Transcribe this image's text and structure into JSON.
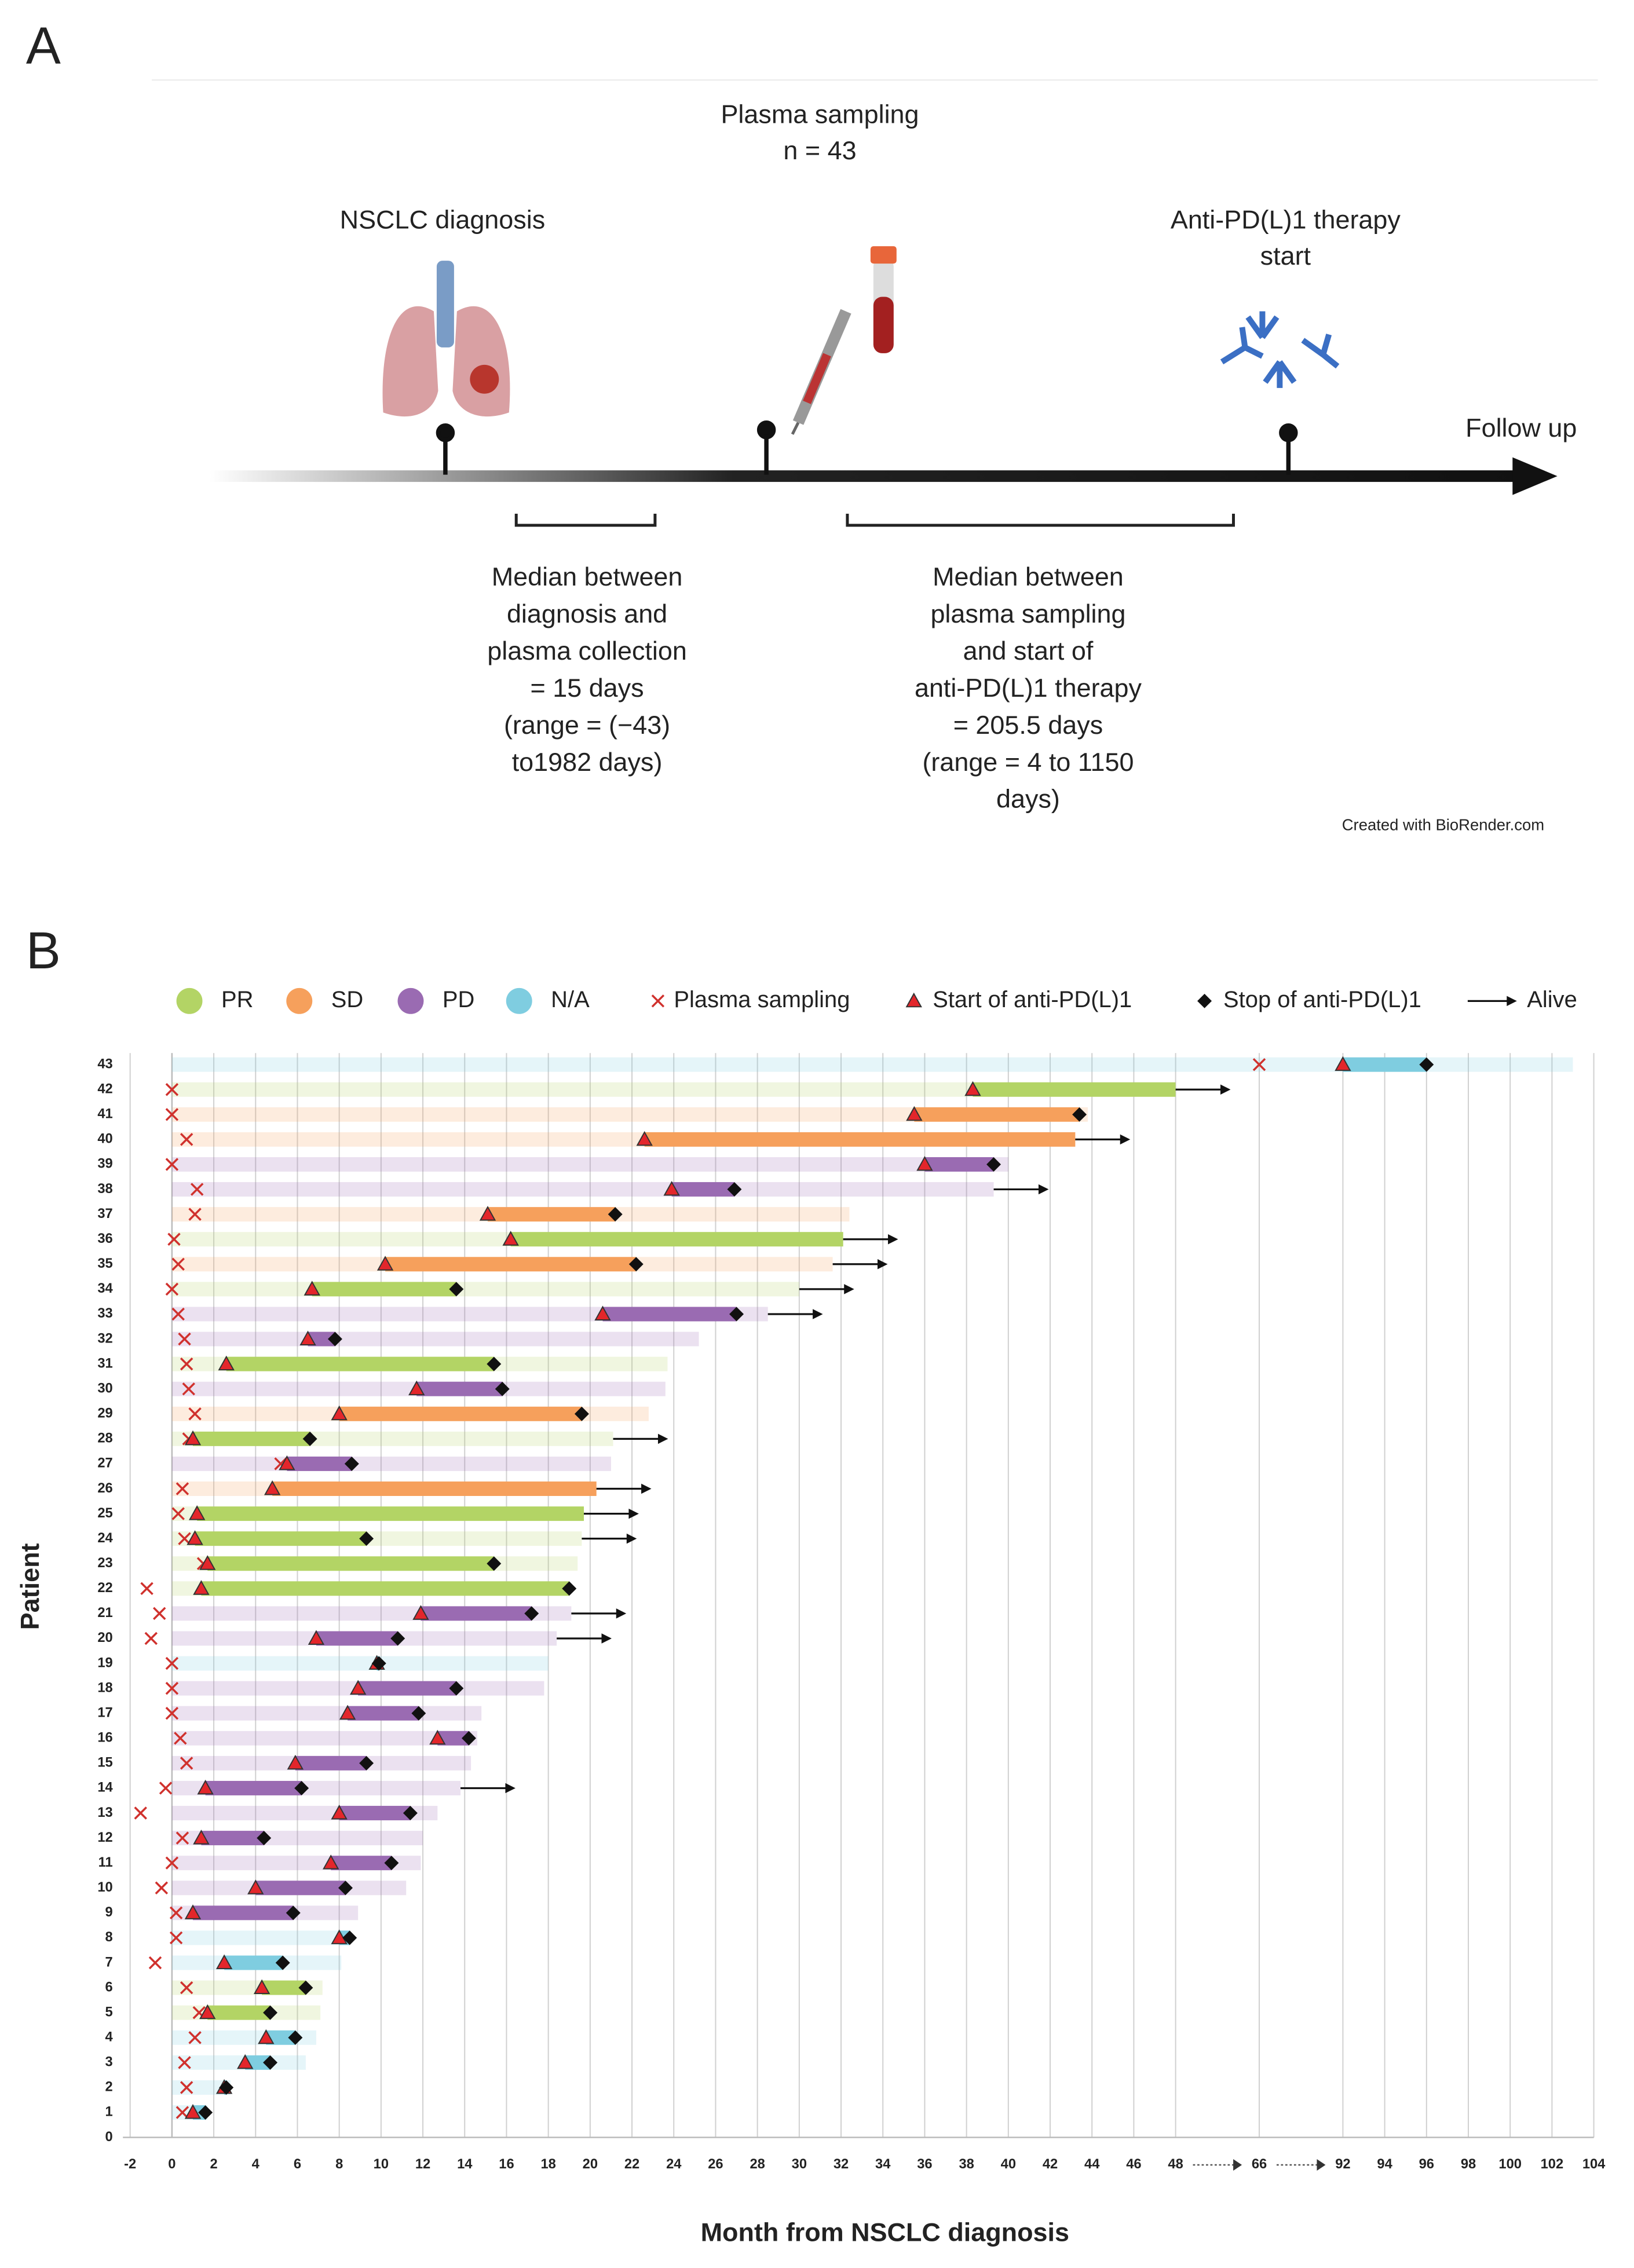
{
  "panel_a": {
    "label": "A",
    "plasma_sampling": "Plasma sampling",
    "n": "n = 43",
    "diagnosis": "NSCLC diagnosis",
    "therapy": [
      "Anti-PD(L)1 therapy",
      "start"
    ],
    "follow_up": "Follow up",
    "median_left": [
      "Median between",
      "diagnosis and",
      "plasma collection",
      "= 15 days",
      "(range = (−43)",
      "to1982 days)"
    ],
    "median_right": [
      "Median between",
      "plasma sampling",
      "and start of",
      "anti-PD(L)1 therapy",
      "= 205.5 days",
      "(range = 4 to 1150",
      "days)"
    ],
    "credit": "Created with BioRender.com"
  },
  "chart_data": {
    "type": "swimmer",
    "label": "B",
    "ylabel": "Patient",
    "xlabel": "Month from NSCLC diagnosis",
    "responses": [
      {
        "name": "PR",
        "color": "#b3d465"
      },
      {
        "name": "SD",
        "color": "#f6a05c"
      },
      {
        "name": "PD",
        "color": "#9a6bb2"
      },
      {
        "name": "N/A",
        "color": "#7fcde0"
      }
    ],
    "markers": {
      "plasma_sampling": "Plasma sampling",
      "start": "Start of anti-PD(L)1",
      "stop": "Stop of anti-PD(L)1",
      "alive": "Alive"
    },
    "xlim": [
      -2,
      104
    ],
    "xticks": [
      -2,
      0,
      2,
      4,
      6,
      8,
      10,
      12,
      14,
      16,
      18,
      20,
      22,
      24,
      26,
      28,
      30,
      32,
      34,
      36,
      38,
      40,
      42,
      44,
      46,
      48,
      66,
      92,
      94,
      96,
      98,
      100,
      102,
      104
    ],
    "ylim": [
      0,
      43
    ],
    "yticks": [
      0,
      1,
      2,
      3,
      4,
      5,
      6,
      7,
      8,
      9,
      10,
      11,
      12,
      13,
      14,
      15,
      16,
      17,
      18,
      19,
      20,
      21,
      22,
      23,
      24,
      25,
      26,
      27,
      28,
      29,
      30,
      31,
      32,
      33,
      34,
      35,
      36,
      37,
      38,
      39,
      40,
      41,
      42,
      43
    ],
    "grid": true,
    "patients": [
      {
        "patient": 1,
        "response": "N/A",
        "follow_up": 1.7,
        "plasma_sampling": 0.5,
        "start": 1,
        "stop": 1.6,
        "alive": false
      },
      {
        "patient": 2,
        "response": "N/A",
        "follow_up": 2.8,
        "plasma_sampling": 0.7,
        "start": 2.5,
        "stop": 2.6,
        "alive": false
      },
      {
        "patient": 3,
        "response": "N/A",
        "follow_up": 6.4,
        "plasma_sampling": 0.6,
        "start": 3.5,
        "stop": 4.7,
        "alive": false
      },
      {
        "patient": 4,
        "response": "N/A",
        "follow_up": 6.9,
        "plasma_sampling": 1.1,
        "start": 4.5,
        "stop": 5.9,
        "alive": false
      },
      {
        "patient": 5,
        "response": "PR",
        "follow_up": 7.1,
        "plasma_sampling": 1.3,
        "start": 1.7,
        "stop": 4.7,
        "alive": false
      },
      {
        "patient": 6,
        "response": "PR",
        "follow_up": 7.2,
        "plasma_sampling": 0.7,
        "start": 4.3,
        "stop": 6.4,
        "alive": false
      },
      {
        "patient": 7,
        "response": "N/A",
        "follow_up": 8.1,
        "plasma_sampling": -0.8,
        "start": 2.5,
        "stop": 5.3,
        "alive": false
      },
      {
        "patient": 8,
        "response": "N/A",
        "follow_up": 8.5,
        "plasma_sampling": 0.2,
        "start": 8,
        "stop": 8.5,
        "alive": false
      },
      {
        "patient": 9,
        "response": "PD",
        "follow_up": 8.9,
        "plasma_sampling": 0.2,
        "start": 1,
        "stop": 5.8,
        "alive": false
      },
      {
        "patient": 10,
        "response": "PD",
        "follow_up": 11.2,
        "plasma_sampling": -0.5,
        "start": 4,
        "stop": 8.3,
        "alive": false
      },
      {
        "patient": 11,
        "response": "PD",
        "follow_up": 11.9,
        "plasma_sampling": 0,
        "start": 7.6,
        "stop": 10.5,
        "alive": false
      },
      {
        "patient": 12,
        "response": "PD",
        "follow_up": 12,
        "plasma_sampling": 0.5,
        "start": 1.4,
        "stop": 4.4,
        "alive": false
      },
      {
        "patient": 13,
        "response": "PD",
        "follow_up": 12.7,
        "plasma_sampling": -1.5,
        "start": 8,
        "stop": 11.4,
        "alive": false
      },
      {
        "patient": 14,
        "response": "PD",
        "follow_up": 13.8,
        "plasma_sampling": -0.3,
        "start": 1.6,
        "stop": 6.2,
        "alive": true
      },
      {
        "patient": 15,
        "response": "PD",
        "follow_up": 14.3,
        "plasma_sampling": 0.7,
        "start": 5.9,
        "stop": 9.3,
        "alive": false
      },
      {
        "patient": 16,
        "response": "PD",
        "follow_up": 14.6,
        "plasma_sampling": 0.4,
        "start": 12.7,
        "stop": 14.2,
        "alive": false
      },
      {
        "patient": 17,
        "response": "PD",
        "follow_up": 14.8,
        "plasma_sampling": 0,
        "start": 8.4,
        "stop": 11.8,
        "alive": false
      },
      {
        "patient": 18,
        "response": "PD",
        "follow_up": 17.8,
        "plasma_sampling": 0,
        "start": 8.9,
        "stop": 13.6,
        "alive": false
      },
      {
        "patient": 19,
        "response": "N/A",
        "follow_up": 18,
        "plasma_sampling": 0,
        "start": 9.8,
        "stop": 9.9,
        "alive": false
      },
      {
        "patient": 20,
        "response": "PD",
        "follow_up": 18.4,
        "plasma_sampling": -1,
        "start": 6.9,
        "stop": 10.8,
        "alive": true
      },
      {
        "patient": 21,
        "response": "PD",
        "follow_up": 19.1,
        "plasma_sampling": -0.6,
        "start": 11.9,
        "stop": 17.2,
        "alive": true
      },
      {
        "patient": 22,
        "response": "PR",
        "follow_up": 19,
        "plasma_sampling": -1.2,
        "start": 1.4,
        "stop": 19,
        "alive": false
      },
      {
        "patient": 23,
        "response": "PR",
        "follow_up": 19.4,
        "plasma_sampling": 1.5,
        "start": 1.7,
        "stop": 15.4,
        "alive": false
      },
      {
        "patient": 24,
        "response": "PR",
        "follow_up": 19.6,
        "plasma_sampling": 0.6,
        "start": 1.1,
        "stop": 9.3,
        "alive": true
      },
      {
        "patient": 25,
        "response": "PR",
        "follow_up": 19.7,
        "plasma_sampling": 0.3,
        "start": 1.2,
        "stop": null,
        "alive": true
      },
      {
        "patient": 26,
        "response": "SD",
        "follow_up": 20.3,
        "plasma_sampling": 0.5,
        "start": 4.8,
        "stop": null,
        "alive": true
      },
      {
        "patient": 27,
        "response": "PD",
        "follow_up": 21,
        "plasma_sampling": 5.2,
        "start": 5.5,
        "stop": 8.6,
        "alive": false
      },
      {
        "patient": 28,
        "response": "PR",
        "follow_up": 21.1,
        "plasma_sampling": 0.8,
        "start": 1,
        "stop": 6.6,
        "alive": true
      },
      {
        "patient": 29,
        "response": "SD",
        "follow_up": 22.8,
        "plasma_sampling": 1.1,
        "start": 8,
        "stop": 19.6,
        "alive": false
      },
      {
        "patient": 30,
        "response": "PD",
        "follow_up": 23.6,
        "plasma_sampling": 0.8,
        "start": 11.7,
        "stop": 15.8,
        "alive": false
      },
      {
        "patient": 31,
        "response": "PR",
        "follow_up": 23.7,
        "plasma_sampling": 0.7,
        "start": 2.6,
        "stop": 15.4,
        "alive": false
      },
      {
        "patient": 32,
        "response": "PD",
        "follow_up": 25.2,
        "plasma_sampling": 0.6,
        "start": 6.5,
        "stop": 7.8,
        "alive": false
      },
      {
        "patient": 33,
        "response": "PD",
        "follow_up": 28.5,
        "plasma_sampling": 0.3,
        "start": 20.6,
        "stop": 27,
        "alive": true
      },
      {
        "patient": 34,
        "response": "PR",
        "follow_up": 30,
        "plasma_sampling": 0,
        "start": 6.7,
        "stop": 13.6,
        "alive": true
      },
      {
        "patient": 35,
        "response": "SD",
        "follow_up": 31.6,
        "plasma_sampling": 0.3,
        "start": 10.2,
        "stop": 22.2,
        "alive": true
      },
      {
        "patient": 36,
        "response": "PR",
        "follow_up": 32.1,
        "plasma_sampling": 0.1,
        "start": 16.2,
        "stop": null,
        "alive": true
      },
      {
        "patient": 37,
        "response": "SD",
        "follow_up": 32.4,
        "plasma_sampling": 1.1,
        "start": 15.1,
        "stop": 21.2,
        "alive": false
      },
      {
        "patient": 38,
        "response": "PD",
        "follow_up": 39.3,
        "plasma_sampling": 1.2,
        "start": 23.9,
        "stop": 26.9,
        "alive": true
      },
      {
        "patient": 39,
        "response": "PD",
        "follow_up": 40,
        "plasma_sampling": 0,
        "start": 36,
        "stop": 39.3,
        "alive": false
      },
      {
        "patient": 40,
        "response": "SD",
        "follow_up": 43.2,
        "plasma_sampling": 0.7,
        "start": 22.6,
        "stop": null,
        "alive": true
      },
      {
        "patient": 41,
        "response": "SD",
        "follow_up": 43.8,
        "plasma_sampling": 0,
        "start": 35.5,
        "stop": 43.4,
        "alive": false
      },
      {
        "patient": 42,
        "response": "PR",
        "follow_up": 48,
        "plasma_sampling": 0,
        "start": 38.3,
        "stop": null,
        "alive": true
      },
      {
        "patient": 43,
        "response": "N/A",
        "follow_up": 103,
        "plasma_sampling": 66,
        "start": 92,
        "stop": 96,
        "alive": false
      }
    ]
  }
}
